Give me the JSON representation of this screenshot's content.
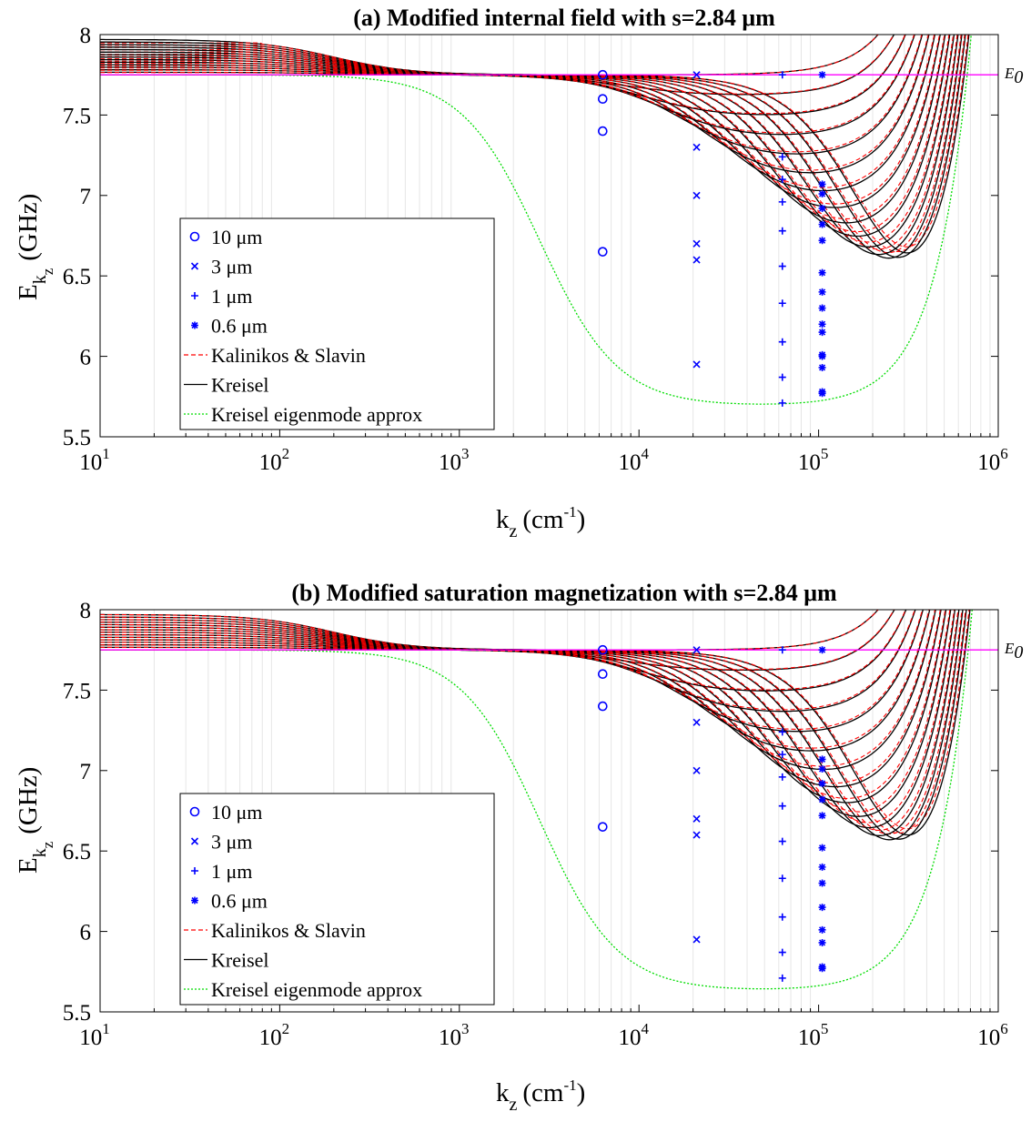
{
  "colors": {
    "kalinikos": "#ff0000",
    "kreisel": "#000000",
    "eigenmode": "#00dd00",
    "e0_line": "#ff00ff",
    "markers": "#0000ff",
    "minor_grid": "#e6e6e6"
  },
  "panels": [
    {
      "title": "(a) Modified internal field with s=2.84 μm",
      "xlabel": "k",
      "xlabel_sub": "z",
      "xlabel_unit": "(cm",
      "xlabel_unit_sup": "-1",
      "xlabel_unit_close": ")",
      "ylabel": "E",
      "ylabel_sub": "k",
      "ylabel_subsub": "z",
      "ylabel_unit": "(GHz)",
      "e0_label": "E",
      "e0_sub": "0",
      "legend": [
        {
          "label": "10 μm",
          "icon": "circle-marker"
        },
        {
          "label": "3 μm",
          "icon": "cross-marker"
        },
        {
          "label": "1 μm",
          "icon": "plus-marker"
        },
        {
          "label": "0.6 μm",
          "icon": "asterisk-marker"
        },
        {
          "label": "Kalinikos & Slavin",
          "icon": "dashed-line"
        },
        {
          "label": "Kreisel",
          "icon": "solid-line"
        },
        {
          "label": "Kreisel eigenmode approx",
          "icon": "dotted-line"
        }
      ]
    },
    {
      "title": "(b) Modified saturation magnetization with s=2.84 μm",
      "xlabel": "k",
      "xlabel_sub": "z",
      "xlabel_unit": "(cm",
      "xlabel_unit_sup": "-1",
      "xlabel_unit_close": ")",
      "ylabel": "E",
      "ylabel_sub": "k",
      "ylabel_subsub": "z",
      "ylabel_unit": "(GHz)",
      "e0_label": "E",
      "e0_sub": "0",
      "legend": [
        {
          "label": "10 μm",
          "icon": "circle-marker"
        },
        {
          "label": "3 μm",
          "icon": "cross-marker"
        },
        {
          "label": "1 μm",
          "icon": "plus-marker"
        },
        {
          "label": "0.6 μm",
          "icon": "asterisk-marker"
        },
        {
          "label": "Kalinikos & Slavin",
          "icon": "dashed-line"
        },
        {
          "label": "Kreisel",
          "icon": "solid-line"
        },
        {
          "label": "Kreisel eigenmode approx",
          "icon": "dotted-line"
        }
      ]
    }
  ],
  "chart_data": [
    {
      "type": "line",
      "title": "(a) Modified internal field with s=2.84 μm",
      "xlabel": "kz (cm-1)",
      "ylabel": "Ekz (GHz)",
      "xscale": "log",
      "xlim": [
        10,
        1000000
      ],
      "ylim": [
        5.5,
        8
      ],
      "x_ticks": [
        10,
        100,
        1000,
        10000,
        100000,
        1000000
      ],
      "x_tick_base": "10",
      "x_tick_exponents": [
        "1",
        "2",
        "3",
        "4",
        "5",
        "6"
      ],
      "y_ticks": [
        5.5,
        6,
        6.5,
        7,
        7.5,
        8
      ],
      "y_tick_labels": [
        "5.5",
        "6",
        "6.5",
        "7",
        "7.5",
        "8"
      ],
      "grid": "minor x",
      "legend_position": "lower-left",
      "E0": 7.75,
      "model": {
        "family_count": 15,
        "E0": 7.75,
        "k_rise_center": 300000,
        "mode0_min_value": 5.68,
        "mode0_min_k": 62000,
        "top_mode_start": 7.97,
        "start_spacing": 0.0157,
        "eigen_min_value": 5.69,
        "eigen_min_k": 56000,
        "kalinikos_start_break_k": 80
      },
      "series": [
        {
          "name": "10 μm",
          "marker": "circle",
          "x": [
            6280,
            6280,
            6280,
            6280
          ],
          "y": [
            7.75,
            7.6,
            7.4,
            6.65
          ]
        },
        {
          "name": "3 μm",
          "marker": "cross",
          "x": [
            20940,
            20940,
            20940,
            20940,
            20940,
            20940
          ],
          "y": [
            7.75,
            7.3,
            7.0,
            6.7,
            6.6,
            5.95
          ]
        },
        {
          "name": "1 μm",
          "marker": "plus",
          "x": [
            62830,
            62830,
            62830,
            62830,
            62830,
            62830,
            62830,
            62830,
            62830,
            62830
          ],
          "y": [
            7.75,
            7.24,
            7.1,
            6.96,
            6.78,
            6.56,
            6.33,
            6.09,
            5.87,
            5.71
          ]
        },
        {
          "name": "0.6 μm",
          "marker": "asterisk",
          "x": [
            104720,
            104720,
            104720,
            104720,
            104720,
            104720,
            104720,
            104720,
            104720,
            104720,
            104720,
            104720,
            104720,
            104720,
            104720,
            104720
          ],
          "y": [
            7.75,
            7.07,
            7.01,
            6.92,
            6.82,
            6.72,
            6.52,
            6.4,
            6.3,
            6.15,
            6.01,
            5.93,
            5.78,
            5.77,
            6.0,
            6.2
          ]
        },
        {
          "name": "Kalinikos & Slavin",
          "style": "dashed"
        },
        {
          "name": "Kreisel",
          "style": "solid"
        },
        {
          "name": "Kreisel eigenmode approx",
          "style": "dotted"
        }
      ]
    },
    {
      "type": "line",
      "title": "(b) Modified saturation magnetization with s=2.84 μm",
      "xlabel": "kz (cm-1)",
      "ylabel": "Ekz (GHz)",
      "xscale": "log",
      "xlim": [
        10,
        1000000
      ],
      "ylim": [
        5.5,
        8
      ],
      "x_ticks": [
        10,
        100,
        1000,
        10000,
        100000,
        1000000
      ],
      "x_tick_base": "10",
      "x_tick_exponents": [
        "1",
        "2",
        "3",
        "4",
        "5",
        "6"
      ],
      "y_ticks": [
        5.5,
        6,
        6.5,
        7,
        7.5,
        8
      ],
      "y_tick_labels": [
        "5.5",
        "6",
        "6.5",
        "7",
        "7.5",
        "8"
      ],
      "grid": "minor x",
      "legend_position": "lower-left",
      "E0": 7.75,
      "model": {
        "family_count": 15,
        "E0": 7.75,
        "k_rise_center": 300000,
        "mode0_min_value": 5.62,
        "mode0_min_k": 62000,
        "top_mode_start": 7.97,
        "start_spacing": 0.0157,
        "eigen_min_value": 5.63,
        "eigen_min_k": 58000,
        "kalinikos_start_break_k": 0
      },
      "series": [
        {
          "name": "10 μm",
          "marker": "circle",
          "x": [
            6280,
            6280,
            6280,
            6280
          ],
          "y": [
            7.75,
            7.6,
            7.4,
            6.65
          ]
        },
        {
          "name": "3 μm",
          "marker": "cross",
          "x": [
            20940,
            20940,
            20940,
            20940,
            20940,
            20940
          ],
          "y": [
            7.75,
            7.3,
            7.0,
            6.7,
            6.6,
            5.95
          ]
        },
        {
          "name": "1 μm",
          "marker": "plus",
          "x": [
            62830,
            62830,
            62830,
            62830,
            62830,
            62830,
            62830,
            62830,
            62830,
            62830
          ],
          "y": [
            7.75,
            7.24,
            7.1,
            6.96,
            6.78,
            6.56,
            6.33,
            6.09,
            5.87,
            5.71
          ]
        },
        {
          "name": "0.6 μm",
          "marker": "asterisk",
          "x": [
            104720,
            104720,
            104720,
            104720,
            104720,
            104720,
            104720,
            104720,
            104720,
            104720,
            104720,
            104720,
            104720,
            104720
          ],
          "y": [
            7.75,
            7.07,
            7.01,
            6.92,
            6.82,
            6.72,
            6.52,
            6.4,
            6.3,
            6.15,
            6.01,
            5.93,
            5.78,
            5.77
          ]
        },
        {
          "name": "Kalinikos & Slavin",
          "style": "dashed"
        },
        {
          "name": "Kreisel",
          "style": "solid"
        },
        {
          "name": "Kreisel eigenmode approx",
          "style": "dotted"
        }
      ]
    }
  ]
}
